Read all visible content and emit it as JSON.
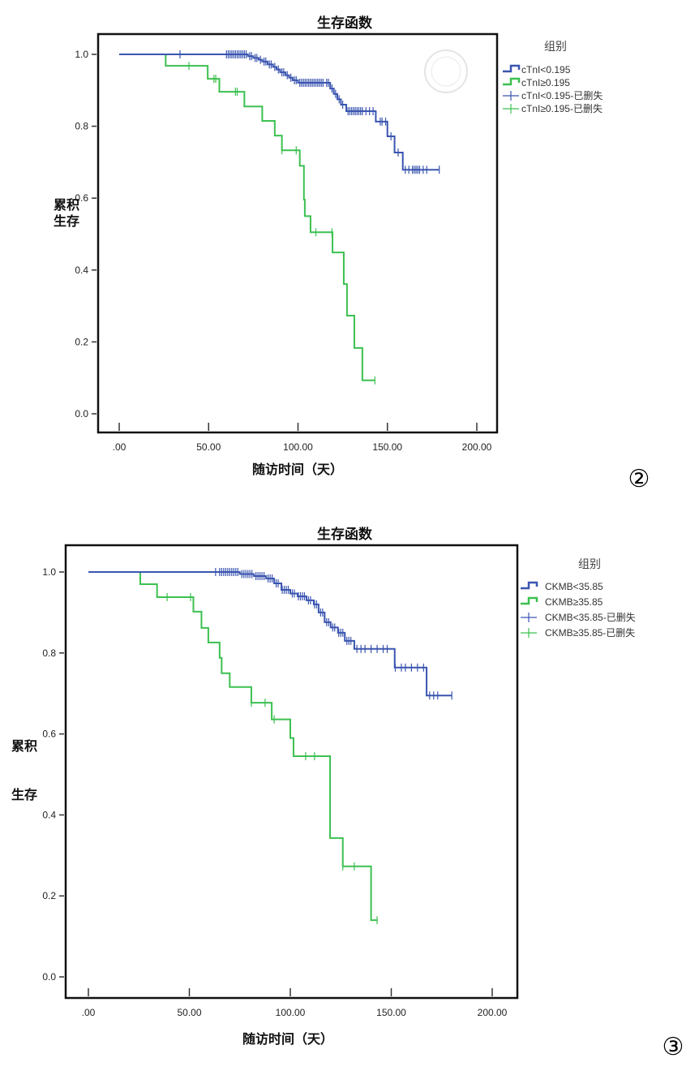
{
  "colors": {
    "blue": "#3a55b0",
    "green": "#3cc050",
    "frame": "#111111"
  },
  "chart_data": [
    {
      "type": "line",
      "subtype": "kaplan-meier",
      "title": "生存函数",
      "xlabel": "随访时间（天）",
      "ylabel": [
        "累积",
        "生存"
      ],
      "panel_label": "②",
      "xlim": [
        0,
        200
      ],
      "ylim": [
        0,
        1
      ],
      "x_ticks": [
        ".00",
        "50.00",
        "100.00",
        "150.00",
        "200.00"
      ],
      "x_tick_values": [
        0,
        50,
        100,
        150,
        200
      ],
      "y_ticks": [
        "0.0",
        "0.2",
        "0.4",
        "0.6",
        "0.8",
        "1.0"
      ],
      "y_tick_values": [
        0,
        0.2,
        0.4,
        0.6,
        0.8,
        1.0
      ],
      "legend_title": "组别",
      "legend_position": "right",
      "legend": [
        "cTnI<0.195",
        "cTnI≥0.195",
        "cTnI<0.195-已删失",
        "cTnI≥0.195-已删失"
      ],
      "series": [
        {
          "name": "cTnI<0.195",
          "color": "#3a55b0",
          "end": 179,
          "steps": [
            [
              72,
              0.995
            ],
            [
              75,
              0.99
            ],
            [
              78,
              0.985
            ],
            [
              80,
              0.98
            ],
            [
              83,
              0.972
            ],
            [
              86,
              0.965
            ],
            [
              88,
              0.958
            ],
            [
              90,
              0.95
            ],
            [
              93,
              0.942
            ],
            [
              95,
              0.935
            ],
            [
              97,
              0.928
            ],
            [
              100,
              0.921
            ],
            [
              118,
              0.905
            ],
            [
              120,
              0.89
            ],
            [
              122,
              0.875
            ],
            [
              124,
              0.86
            ],
            [
              127,
              0.842
            ],
            [
              143.5,
              0.813
            ],
            [
              150,
              0.772
            ],
            [
              154,
              0.727
            ],
            [
              158.6,
              0.679
            ]
          ],
          "censored": [
            34,
            60,
            61,
            62,
            63,
            64,
            65,
            66,
            67,
            68,
            69,
            70,
            71,
            73,
            74,
            76,
            77,
            79,
            81,
            82,
            84,
            85,
            87,
            89,
            91,
            92,
            94,
            96,
            98,
            99,
            101,
            102,
            103,
            104,
            105,
            106,
            107,
            108,
            109,
            110,
            111,
            112,
            113,
            114,
            116,
            117,
            119,
            121,
            123,
            125,
            128,
            129,
            130,
            131,
            132,
            133,
            134,
            135,
            136,
            138,
            140,
            142,
            146,
            147,
            149,
            152,
            156,
            160,
            162,
            164,
            165,
            166,
            167,
            168,
            170,
            172,
            179
          ]
        },
        {
          "name": "cTnI≥0.195",
          "color": "#3cc050",
          "end": 143,
          "steps": [
            [
              26,
              0.968
            ],
            [
              49.5,
              0.932
            ],
            [
              56,
              0.896
            ],
            [
              70,
              0.855
            ],
            [
              80,
              0.815
            ],
            [
              87,
              0.774
            ],
            [
              91,
              0.733
            ],
            [
              101,
              0.69
            ],
            [
              103.3,
              0.596
            ],
            [
              103.8,
              0.55
            ],
            [
              107,
              0.505
            ],
            [
              119.3,
              0.449
            ],
            [
              125.6,
              0.361
            ],
            [
              127.4,
              0.273
            ],
            [
              131.5,
              0.183
            ],
            [
              136,
              0.093
            ]
          ],
          "censored": [
            39,
            53,
            54,
            65,
            66,
            91,
            99,
            110,
            119,
            143
          ]
        }
      ]
    },
    {
      "type": "line",
      "subtype": "kaplan-meier",
      "title": "生存函数",
      "xlabel": "随访时间（天）",
      "ylabel": [
        "累积",
        "生存"
      ],
      "panel_label": "③",
      "xlim": [
        0,
        200
      ],
      "ylim": [
        0,
        1
      ],
      "x_ticks": [
        ".00",
        "50.00",
        "100.00",
        "150.00",
        "200.00"
      ],
      "x_tick_values": [
        0,
        50,
        100,
        150,
        200
      ],
      "y_ticks": [
        "0.0",
        "0.2",
        "0.4",
        "0.6",
        "0.8",
        "1.0"
      ],
      "y_tick_values": [
        0,
        0.2,
        0.4,
        0.6,
        0.8,
        1.0
      ],
      "legend_title": "组别",
      "legend_position": "right",
      "legend": [
        "CKMB<35.85",
        "CKMB≥35.85",
        "CKMB<35.85-已删失",
        "CKMB≥35.85-已删失"
      ],
      "series": [
        {
          "name": "CKMB<35.85",
          "color": "#3a55b0",
          "end": 180,
          "steps": [
            [
              75,
              0.995
            ],
            [
              82,
              0.99
            ],
            [
              88,
              0.984
            ],
            [
              92,
              0.972
            ],
            [
              95.6,
              0.956
            ],
            [
              100,
              0.947
            ],
            [
              103.6,
              0.94
            ],
            [
              108,
              0.93
            ],
            [
              111.6,
              0.92
            ],
            [
              114,
              0.9
            ],
            [
              117,
              0.876
            ],
            [
              120,
              0.863
            ],
            [
              123.6,
              0.85
            ],
            [
              127,
              0.83
            ],
            [
              131.7,
              0.81
            ],
            [
              151.7,
              0.764
            ],
            [
              167.5,
              0.695
            ]
          ],
          "censored": [
            63,
            65,
            66,
            67,
            68,
            69,
            70,
            71,
            72,
            73,
            74,
            76,
            77,
            78,
            79,
            80,
            81,
            83,
            84,
            85,
            86,
            87,
            89,
            90,
            91,
            93,
            94,
            96,
            97,
            98,
            99,
            101,
            102,
            104,
            105,
            106,
            107,
            109,
            110,
            112,
            113,
            115,
            116,
            118,
            119,
            121,
            122,
            124,
            125,
            126,
            128,
            129,
            130,
            133,
            135,
            137,
            140,
            143,
            146,
            148,
            152,
            155,
            157,
            160,
            163,
            166,
            169,
            171,
            173,
            180
          ]
        },
        {
          "name": "CKMB≥35.85",
          "color": "#3cc050",
          "end": 143,
          "steps": [
            [
              25.7,
              0.97
            ],
            [
              34,
              0.938
            ],
            [
              52,
              0.902
            ],
            [
              56,
              0.862
            ],
            [
              59.4,
              0.826
            ],
            [
              65,
              0.788
            ],
            [
              66,
              0.75
            ],
            [
              70,
              0.716
            ],
            [
              80.7,
              0.677
            ],
            [
              90.8,
              0.636
            ],
            [
              100,
              0.59
            ],
            [
              101.6,
              0.545
            ],
            [
              119.7,
              0.343
            ],
            [
              126,
              0.273
            ],
            [
              140,
              0.14
            ]
          ],
          "censored": [
            39,
            50.6,
            80.7,
            87.5,
            92,
            107.6,
            112,
            126,
            131.7,
            143
          ]
        }
      ]
    }
  ]
}
